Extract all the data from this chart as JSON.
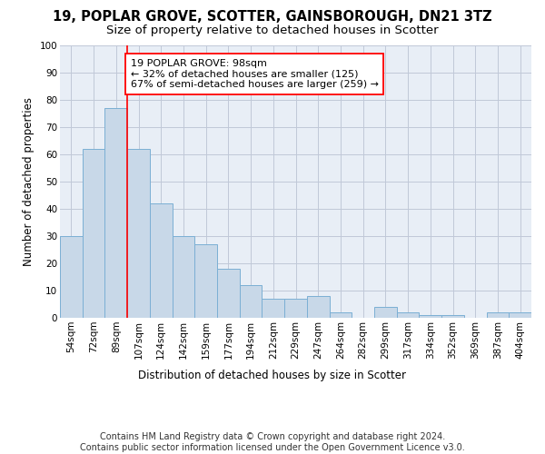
{
  "title_line1": "19, POPLAR GROVE, SCOTTER, GAINSBOROUGH, DN21 3TZ",
  "title_line2": "Size of property relative to detached houses in Scotter",
  "xlabel": "Distribution of detached houses by size in Scotter",
  "ylabel": "Number of detached properties",
  "categories": [
    "54sqm",
    "72sqm",
    "89sqm",
    "107sqm",
    "124sqm",
    "142sqm",
    "159sqm",
    "177sqm",
    "194sqm",
    "212sqm",
    "229sqm",
    "247sqm",
    "264sqm",
    "282sqm",
    "299sqm",
    "317sqm",
    "334sqm",
    "352sqm",
    "369sqm",
    "387sqm",
    "404sqm"
  ],
  "values": [
    30,
    62,
    77,
    62,
    42,
    30,
    27,
    18,
    12,
    7,
    7,
    8,
    2,
    0,
    4,
    2,
    1,
    1,
    0,
    2,
    2
  ],
  "bar_color": "#c8d8e8",
  "bar_edge_color": "#7bafd4",
  "property_line_x": 2.5,
  "annotation_text": "19 POPLAR GROVE: 98sqm\n← 32% of detached houses are smaller (125)\n67% of semi-detached houses are larger (259) →",
  "annotation_box_color": "white",
  "annotation_box_edge_color": "red",
  "property_line_color": "red",
  "grid_color": "#c0c8d8",
  "background_color": "#e8eef6",
  "ylim": [
    0,
    100
  ],
  "yticks": [
    0,
    10,
    20,
    30,
    40,
    50,
    60,
    70,
    80,
    90,
    100
  ],
  "footer_line1": "Contains HM Land Registry data © Crown copyright and database right 2024.",
  "footer_line2": "Contains public sector information licensed under the Open Government Licence v3.0.",
  "title_fontsize": 10.5,
  "subtitle_fontsize": 9.5,
  "axis_label_fontsize": 8.5,
  "tick_fontsize": 7.5,
  "annotation_fontsize": 8,
  "footer_fontsize": 7
}
